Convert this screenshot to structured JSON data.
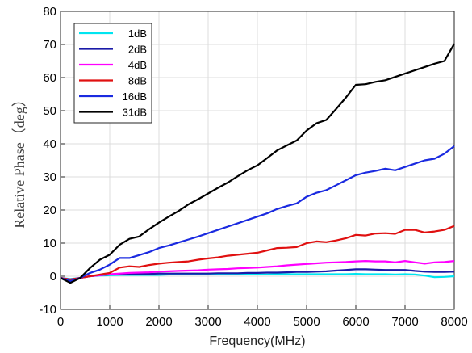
{
  "chart_data": {
    "type": "line",
    "title": "",
    "xlabel": "Frequency(MHz)",
    "ylabel": "Relative Phase（deg）",
    "xlim": [
      0,
      8000
    ],
    "ylim": [
      -10,
      80
    ],
    "xticks": [
      0,
      1000,
      2000,
      3000,
      4000,
      5000,
      6000,
      7000,
      8000
    ],
    "yticks": [
      -10,
      0,
      10,
      20,
      30,
      40,
      50,
      60,
      70,
      80
    ],
    "grid": true,
    "legend_position": "top-left",
    "x": [
      0,
      200,
      400,
      600,
      800,
      1000,
      1200,
      1400,
      1600,
      1800,
      2000,
      2200,
      2400,
      2600,
      2800,
      3000,
      3200,
      3400,
      3600,
      3800,
      4000,
      4200,
      4400,
      4600,
      4800,
      5000,
      5200,
      5400,
      5600,
      5800,
      6000,
      6200,
      6400,
      6600,
      6800,
      7000,
      7200,
      7400,
      7600,
      7800,
      8000
    ],
    "series": [
      {
        "name": "1dB",
        "color": "#00e5f0",
        "values": [
          -0.5,
          -0.8,
          -0.5,
          0,
          0.2,
          0.3,
          0.4,
          0.4,
          0.4,
          0.4,
          0.4,
          0.5,
          0.5,
          0.5,
          0.5,
          0.5,
          0.5,
          0.5,
          0.5,
          0.5,
          0.5,
          0.5,
          0.6,
          0.6,
          0.6,
          0.6,
          0.6,
          0.6,
          0.6,
          0.6,
          0.7,
          0.6,
          0.6,
          0.6,
          0.5,
          0.6,
          0.5,
          0.2,
          -0.3,
          -0.2,
          0
        ]
      },
      {
        "name": "2dB",
        "color": "#1a1aa8",
        "values": [
          -0.5,
          -1,
          -0.5,
          0,
          0.3,
          0.5,
          0.7,
          0.7,
          0.7,
          0.7,
          0.8,
          0.8,
          0.8,
          0.8,
          0.8,
          0.8,
          0.9,
          0.9,
          0.9,
          1.0,
          1.0,
          1.1,
          1.1,
          1.2,
          1.3,
          1.3,
          1.4,
          1.5,
          1.7,
          1.9,
          2.1,
          2.1,
          2.0,
          1.9,
          1.9,
          1.9,
          1.6,
          1.4,
          1.3,
          1.3,
          1.4
        ]
      },
      {
        "name": "4dB",
        "color": "#ff00ff",
        "values": [
          -0.5,
          -1,
          -0.5,
          0,
          0.3,
          0.6,
          0.8,
          1.0,
          1.1,
          1.2,
          1.4,
          1.5,
          1.6,
          1.7,
          1.8,
          2.0,
          2.1,
          2.2,
          2.4,
          2.5,
          2.6,
          2.8,
          3.0,
          3.3,
          3.5,
          3.7,
          3.9,
          4.1,
          4.2,
          4.3,
          4.5,
          4.6,
          4.5,
          4.5,
          4.2,
          4.6,
          4.2,
          3.8,
          4.2,
          4.3,
          4.6
        ]
      },
      {
        "name": "8dB",
        "color": "#e01010",
        "values": [
          -0.5,
          -1,
          -0.5,
          0,
          0.5,
          1,
          2.6,
          3.0,
          2.8,
          3.4,
          3.8,
          4.1,
          4.3,
          4.5,
          5.0,
          5.4,
          5.7,
          6.2,
          6.5,
          6.8,
          7.1,
          7.8,
          8.5,
          8.6,
          8.8,
          10.0,
          10.5,
          10.3,
          10.8,
          11.5,
          12.5,
          12.3,
          12.9,
          13.0,
          12.8,
          14.0,
          14.0,
          13.2,
          13.5,
          14.0,
          15.2
        ]
      },
      {
        "name": "16dB",
        "color": "#1a2ae0",
        "values": [
          -0.5,
          -1.5,
          -0.5,
          1.0,
          2.0,
          3.5,
          5.5,
          5.5,
          6.4,
          7.3,
          8.5,
          9.3,
          10.2,
          11.1,
          12.0,
          13.0,
          14.0,
          15.0,
          16.0,
          17.0,
          18.0,
          19.0,
          20.3,
          21.2,
          22.0,
          24.0,
          25.2,
          26.0,
          27.5,
          29.0,
          30.5,
          31.3,
          31.8,
          32.5,
          32.0,
          33.0,
          34.0,
          35.0,
          35.5,
          37.0,
          39.3
        ]
      },
      {
        "name": "31dB",
        "color": "#000000",
        "values": [
          -0.5,
          -2,
          -0.5,
          2.5,
          5.0,
          6.5,
          9.5,
          11.3,
          12.0,
          14.2,
          16.2,
          18.0,
          19.7,
          21.7,
          23.3,
          25.0,
          26.7,
          28.3,
          30.2,
          32.0,
          33.5,
          35.7,
          38.0,
          39.5,
          41.0,
          44.0,
          46.2,
          47.2,
          50.5,
          54.0,
          57.8,
          58.0,
          58.7,
          59.2,
          60.2,
          61.2,
          62.2,
          63.2,
          64.2,
          65.0,
          70.2
        ]
      }
    ]
  }
}
